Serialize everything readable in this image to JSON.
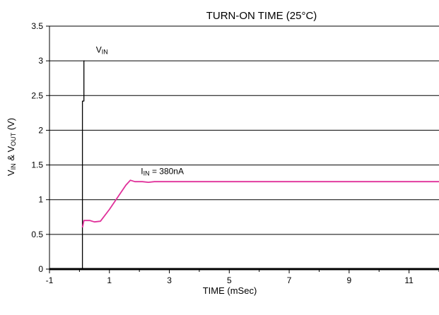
{
  "chart_data": {
    "type": "line",
    "title": "TURN-ON TIME (25°C)",
    "xlabel": "TIME (mSec)",
    "ylabel": {
      "p1": "V",
      "s1": "IN",
      "p2": " & V",
      "s2": "OUT",
      "p3": " (V)"
    },
    "xlim": [
      -1,
      12
    ],
    "ylim": [
      0,
      3.5
    ],
    "x_ticks": [
      -1,
      1,
      3,
      5,
      7,
      9,
      11
    ],
    "y_ticks": [
      0,
      0.5,
      1,
      1.5,
      2,
      2.5,
      3,
      3.5
    ],
    "y_tick_labels": [
      "0",
      "0.5",
      "1",
      "1.5",
      "2",
      "2.5",
      "3",
      "3.5"
    ],
    "grid": {
      "horizontal": true,
      "vertical": false
    },
    "colors": {
      "vin": "#000000",
      "vout": "#e0309a",
      "grid": "#000000"
    },
    "series": [
      {
        "name": "VIN",
        "color": "#000000",
        "points": [
          [
            0.1,
            0
          ],
          [
            0.1,
            2.42
          ],
          [
            0.15,
            2.42
          ],
          [
            0.15,
            3.0
          ],
          [
            0.17,
            3.0
          ]
        ]
      },
      {
        "name": "IIN = 380nA",
        "color": "#e0309a",
        "points": [
          [
            0.1,
            0.6
          ],
          [
            0.15,
            0.7
          ],
          [
            0.35,
            0.7
          ],
          [
            0.5,
            0.68
          ],
          [
            0.7,
            0.69
          ],
          [
            1.0,
            0.86
          ],
          [
            1.3,
            1.05
          ],
          [
            1.55,
            1.21
          ],
          [
            1.7,
            1.28
          ],
          [
            1.85,
            1.26
          ],
          [
            2.1,
            1.26
          ],
          [
            2.3,
            1.25
          ],
          [
            2.5,
            1.26
          ],
          [
            3,
            1.26
          ],
          [
            5,
            1.26
          ],
          [
            8,
            1.26
          ],
          [
            12,
            1.26
          ]
        ]
      }
    ],
    "annotations": [
      {
        "id": "vin",
        "main": "V",
        "sub": "IN",
        "rest": "",
        "x": 0.55,
        "y": 3.12
      },
      {
        "id": "iin",
        "main": "I",
        "sub": "IN",
        "rest": " = 380nA",
        "x": 2.05,
        "y": 1.37
      }
    ]
  }
}
